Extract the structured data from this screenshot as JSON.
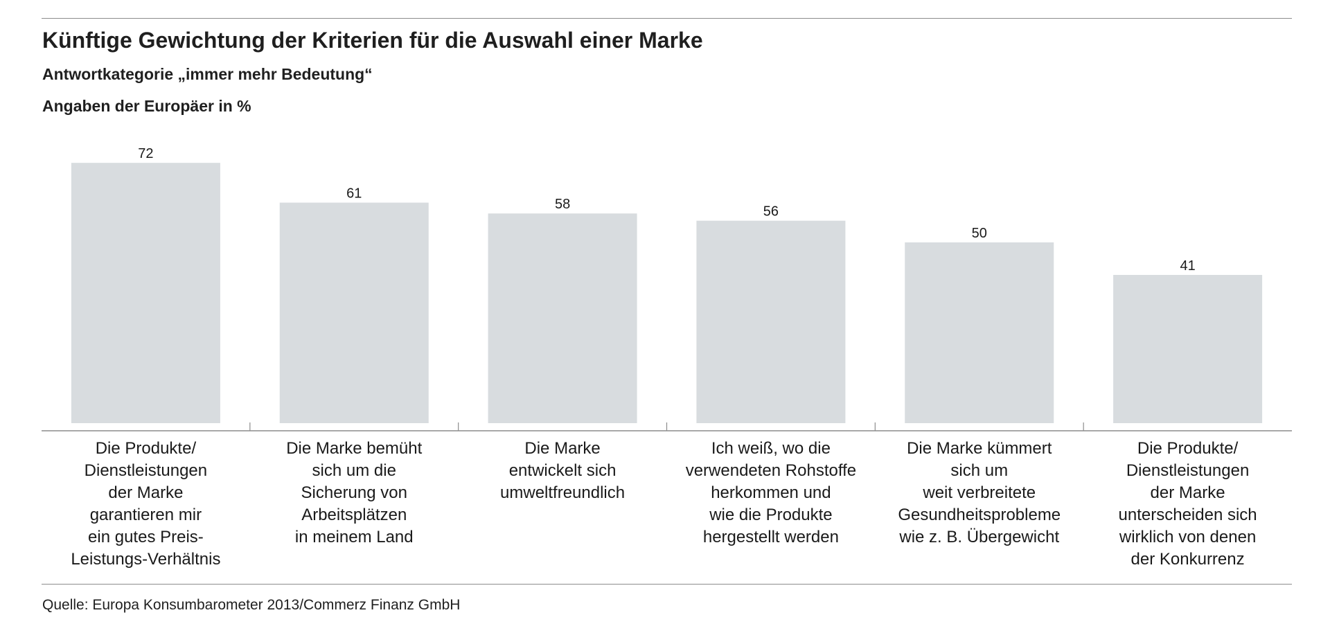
{
  "header": {
    "title": "Künftige Gewichtung der Kriterien für die Auswahl einer Marke",
    "subtitle": "Antwortkategorie „immer mehr Bedeutung“",
    "unit_note": "Angaben der Europäer in %"
  },
  "footer": {
    "source": "Quelle: Europa Konsumbarometer 2013/Commerz Finanz GmbH"
  },
  "chart_data": {
    "type": "bar",
    "title": "Künftige Gewichtung der Kriterien für die Auswahl einer Marke",
    "subtitle": "Antwortkategorie „immer mehr Bedeutung“",
    "xlabel": "",
    "ylabel": "",
    "ylim": [
      0,
      80
    ],
    "grid": false,
    "data_labels": true,
    "bar_color": "#d8dcdf",
    "categories": [
      "Die Produkte/\nDienstleistungen\nder Marke\ngarantieren mir\nein gutes Preis-\nLeistungs-Verhältnis",
      "Die Marke bemüht\nsich um die\nSicherung von\nArbeitsplätzen\nin meinem Land",
      "Die Marke\nentwickelt sich\numweltfreundlich",
      "Ich weiß, wo die\nverwendeten Rohstoffe\nherkommen und\nwie die Produkte\nhergestellt werden",
      "Die Marke kümmert\nsich um\nweit verbreitete\nGesundheitsprobleme\nwie z. B. Übergewicht",
      "Die Produkte/\nDienstleistungen\nder Marke\nunterscheiden sich\nwirklich von denen\nder Konkurrenz"
    ],
    "values": [
      72,
      61,
      58,
      56,
      50,
      41
    ]
  }
}
